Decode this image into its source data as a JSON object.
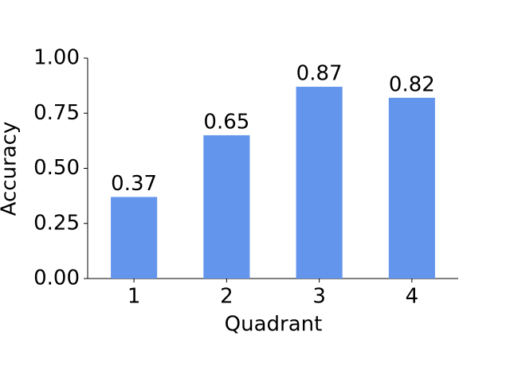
{
  "chart_data": {
    "type": "bar",
    "x_label": "Quadrant",
    "y_label": "Accuracy",
    "categories": [
      "1",
      "2",
      "3",
      "4"
    ],
    "values": [
      0.37,
      0.65,
      0.87,
      0.82
    ],
    "color": "#6495ed",
    "ylim": [
      0,
      1
    ],
    "yticks": [
      {
        "value": 0,
        "label": "0.00"
      },
      {
        "value": 0.25,
        "label": "0.25"
      },
      {
        "value": 0.5,
        "label": "0.50"
      },
      {
        "value": 0.75,
        "label": "0.75"
      },
      {
        "value": 1,
        "label": "1.00"
      }
    ],
    "grid": false
  }
}
